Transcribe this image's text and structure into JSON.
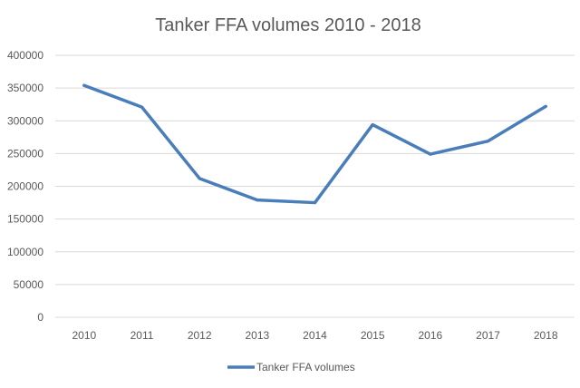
{
  "chart_data": {
    "type": "line",
    "title": "Tanker FFA volumes 2010 - 2018",
    "xlabel": "",
    "ylabel": "",
    "categories": [
      "2010",
      "2011",
      "2012",
      "2013",
      "2014",
      "2015",
      "2016",
      "2017",
      "2018"
    ],
    "series": [
      {
        "name": "Tanker FFA volumes",
        "color": "#4a7ebb",
        "values": [
          354000,
          321000,
          212000,
          179000,
          175000,
          294000,
          249000,
          269000,
          322000
        ]
      }
    ],
    "ylim": [
      0,
      400000
    ],
    "yticks": [
      "0",
      "50000",
      "100000",
      "150000",
      "200000",
      "250000",
      "300000",
      "350000",
      "400000"
    ],
    "grid": true,
    "legend_position": "bottom",
    "colors": {
      "text": "#595959",
      "grid": "#d9d9d9"
    }
  }
}
